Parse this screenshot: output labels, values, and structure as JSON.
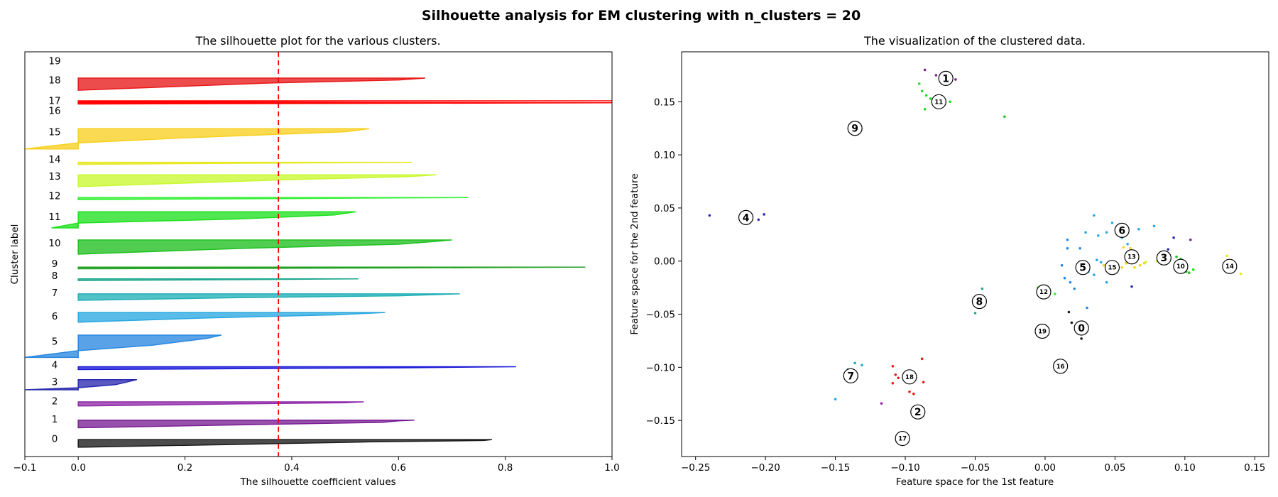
{
  "suptitle": "Silhouette analysis for EM clustering with n_clusters = 20",
  "chart_data": [
    {
      "type": "area",
      "title": "The silhouette plot for the various clusters.",
      "xlabel": "The silhouette coefficient values",
      "ylabel": "Cluster label",
      "xlim": [
        -0.1,
        1.0
      ],
      "xticks": [
        -0.1,
        0.0,
        0.2,
        0.4,
        0.6,
        0.8,
        1.0
      ],
      "xtick_labels": [
        "−0.1",
        "0.0",
        "0.2",
        "0.4",
        "0.6",
        "0.8",
        "1.0"
      ],
      "ylim": [
        0,
        100
      ],
      "average_silhouette": 0.375,
      "average_line_color": "#ff0000",
      "grid": false,
      "clusters": [
        {
          "label": "0",
          "color": "#1a1a1a",
          "y0": 2.3,
          "y1": 4.2,
          "profile": [
            [
              0.775,
              0
            ],
            [
              0.76,
              0.12
            ],
            [
              0.55,
              0.3
            ],
            [
              0.32,
              0.6
            ],
            [
              0.0,
              1.0
            ]
          ]
        },
        {
          "label": "1",
          "color": "#7a1f95",
          "y0": 7.1,
          "y1": 9.0,
          "profile": [
            [
              0.63,
              0
            ],
            [
              0.6,
              0.1
            ],
            [
              0.57,
              0.3
            ],
            [
              0.35,
              0.55
            ],
            [
              0.0,
              1.0
            ]
          ]
        },
        {
          "label": "2",
          "color": "#8f2aa8",
          "y0": 12.5,
          "y1": 13.5,
          "profile": [
            [
              0.535,
              0
            ],
            [
              0.5,
              0.2
            ],
            [
              0.3,
              0.5
            ],
            [
              0.0,
              1.0
            ]
          ]
        },
        {
          "label": "3",
          "color": "#2a2ab0",
          "y0": 16.5,
          "y1": 19.0,
          "profile": [
            [
              0.11,
              0
            ],
            [
              0.09,
              0.25
            ],
            [
              0.07,
              0.5
            ],
            [
              0.0,
              0.8
            ],
            [
              -0.1,
              1.0
            ]
          ]
        },
        {
          "label": "4",
          "color": "#1c1cd8",
          "y0": 21.5,
          "y1": 22.2,
          "profile": [
            [
              0.82,
              0
            ],
            [
              0.6,
              0.4
            ],
            [
              0.0,
              1.0
            ]
          ]
        },
        {
          "label": "5",
          "color": "#2a88e0",
          "y0": 24.5,
          "y1": 30.0,
          "profile": [
            [
              0.268,
              0
            ],
            [
              0.24,
              0.15
            ],
            [
              0.14,
              0.45
            ],
            [
              0.0,
              0.7
            ],
            [
              -0.1,
              1.0
            ]
          ]
        },
        {
          "label": "6",
          "color": "#2aa8e0",
          "y0": 33.2,
          "y1": 35.6,
          "profile": [
            [
              0.575,
              0
            ],
            [
              0.48,
              0.25
            ],
            [
              0.25,
              0.55
            ],
            [
              0.0,
              1.0
            ]
          ]
        },
        {
          "label": "7",
          "color": "#22b0b8",
          "y0": 38.6,
          "y1": 40.2,
          "profile": [
            [
              0.715,
              0
            ],
            [
              0.6,
              0.3
            ],
            [
              0.3,
              0.6
            ],
            [
              0.0,
              1.0
            ]
          ]
        },
        {
          "label": "8",
          "color": "#20a890",
          "y0": 43.5,
          "y1": 43.9,
          "profile": [
            [
              0.525,
              0
            ],
            [
              0.3,
              0.5
            ],
            [
              0.0,
              1.0
            ]
          ]
        },
        {
          "label": "9",
          "color": "#20a020",
          "y0": 46.4,
          "y1": 46.8,
          "profile": [
            [
              0.95,
              0
            ],
            [
              0.6,
              0.5
            ],
            [
              0.0,
              1.0
            ]
          ]
        },
        {
          "label": "10",
          "color": "#20c020",
          "y0": 50.0,
          "y1": 53.5,
          "profile": [
            [
              0.7,
              0
            ],
            [
              0.67,
              0.1
            ],
            [
              0.6,
              0.3
            ],
            [
              0.3,
              0.6
            ],
            [
              0.0,
              1.0
            ]
          ]
        },
        {
          "label": "11",
          "color": "#20e020",
          "y0": 56.5,
          "y1": 60.5,
          "profile": [
            [
              0.52,
              0
            ],
            [
              0.48,
              0.2
            ],
            [
              0.3,
              0.45
            ],
            [
              0.0,
              0.7
            ],
            [
              -0.05,
              1.0
            ]
          ]
        },
        {
          "label": "12",
          "color": "#30f030",
          "y0": 63.5,
          "y1": 64.0,
          "profile": [
            [
              0.73,
              0
            ],
            [
              0.4,
              0.5
            ],
            [
              0.0,
              1.0
            ]
          ]
        },
        {
          "label": "13",
          "color": "#c8f830",
          "y0": 66.7,
          "y1": 69.6,
          "profile": [
            [
              0.67,
              0
            ],
            [
              0.62,
              0.15
            ],
            [
              0.4,
              0.4
            ],
            [
              0.0,
              1.0
            ]
          ]
        },
        {
          "label": "14",
          "color": "#e8e820",
          "y0": 72.2,
          "y1": 72.7,
          "profile": [
            [
              0.625,
              0
            ],
            [
              0.3,
              0.5
            ],
            [
              0.0,
              1.0
            ]
          ]
        },
        {
          "label": "15",
          "color": "#f8d020",
          "y0": 76.0,
          "y1": 81.0,
          "profile": [
            [
              0.545,
              0
            ],
            [
              0.5,
              0.15
            ],
            [
              0.2,
              0.45
            ],
            [
              0.0,
              0.7
            ],
            [
              -0.1,
              1.0
            ]
          ]
        },
        {
          "label": "16",
          "color": "#ff0000",
          "y0": 87.1,
          "y1": 87.4,
          "profile": [
            [
              1.0,
              0
            ],
            [
              0.0,
              1.0
            ]
          ]
        },
        {
          "label": "17",
          "color": "#ff0000",
          "y0": 87.6,
          "y1": 87.9,
          "profile": [
            [
              1.0,
              0
            ],
            [
              0.0,
              1.0
            ]
          ]
        },
        {
          "label": "18",
          "color": "#e81a1a",
          "y0": 90.5,
          "y1": 93.5,
          "profile": [
            [
              0.65,
              0
            ],
            [
              0.6,
              0.15
            ],
            [
              0.36,
              0.4
            ],
            [
              0.0,
              1.0
            ]
          ]
        },
        {
          "label": "19",
          "color": "#e81a1a",
          "y0": 97.5,
          "y1": 97.5,
          "profile": []
        }
      ],
      "cluster_label_y": {
        "0": 4.5,
        "1": 9.3,
        "2": 13.8,
        "3": 18.5,
        "4": 22.7,
        "5": 28.5,
        "6": 34.7,
        "7": 40.5,
        "8": 44.7,
        "9": 47.7,
        "10": 52.8,
        "11": 59.3,
        "12": 64.5,
        "13": 69.3,
        "14": 73.5,
        "15": 80.3,
        "16": 85.5,
        "17": 88.0,
        "18": 93.1,
        "19": 97.8
      }
    },
    {
      "type": "scatter",
      "title": "The visualization of the clustered data.",
      "xlabel": "Feature space for the 1st feature",
      "ylabel": "Feature space for the 2nd feature",
      "xlim": [
        -0.26,
        0.16
      ],
      "ylim": [
        -0.184,
        0.197
      ],
      "xticks": [
        -0.25,
        -0.2,
        -0.15,
        -0.1,
        -0.05,
        0.0,
        0.05,
        0.1,
        0.15
      ],
      "xtick_labels": [
        "−0.25",
        "−0.20",
        "−0.15",
        "−0.10",
        "−0.05",
        "0.00",
        "0.05",
        "0.10",
        "0.15"
      ],
      "yticks": [
        -0.15,
        -0.1,
        -0.05,
        0.0,
        0.05,
        0.1,
        0.15
      ],
      "ytick_labels": [
        "−0.15",
        "−0.10",
        "−0.05",
        "0.00",
        "0.05",
        "0.10",
        "0.15"
      ],
      "grid": false,
      "centers": [
        {
          "label": "0",
          "x": 0.026,
          "y": -0.063
        },
        {
          "label": "1",
          "x": -0.071,
          "y": 0.172
        },
        {
          "label": "2",
          "x": -0.091,
          "y": -0.142
        },
        {
          "label": "3",
          "x": 0.085,
          "y": 0.003
        },
        {
          "label": "4",
          "x": -0.214,
          "y": 0.041
        },
        {
          "label": "5",
          "x": 0.027,
          "y": -0.006
        },
        {
          "label": "6",
          "x": 0.055,
          "y": 0.029
        },
        {
          "label": "7",
          "x": -0.139,
          "y": -0.108
        },
        {
          "label": "8",
          "x": -0.047,
          "y": -0.038
        },
        {
          "label": "9",
          "x": -0.136,
          "y": 0.125
        },
        {
          "label": "10",
          "x": 0.097,
          "y": -0.005
        },
        {
          "label": "11",
          "x": -0.076,
          "y": 0.15
        },
        {
          "label": "12",
          "x": -0.001,
          "y": -0.029
        },
        {
          "label": "13",
          "x": 0.062,
          "y": 0.004
        },
        {
          "label": "14",
          "x": 0.132,
          "y": -0.005
        },
        {
          "label": "15",
          "x": 0.048,
          "y": -0.006
        },
        {
          "label": "16",
          "x": 0.011,
          "y": -0.099
        },
        {
          "label": "17",
          "x": -0.102,
          "y": -0.167
        },
        {
          "label": "18",
          "x": -0.097,
          "y": -0.109
        },
        {
          "label": "19",
          "x": -0.002,
          "y": -0.066
        }
      ],
      "points": [
        {
          "x": -0.24,
          "y": 0.043,
          "c": "#2a2ab0"
        },
        {
          "x": -0.205,
          "y": 0.039,
          "c": "#2a2ab0"
        },
        {
          "x": -0.201,
          "y": 0.044,
          "c": "#2a2ab0"
        },
        {
          "x": -0.086,
          "y": 0.18,
          "c": "#7a1f95"
        },
        {
          "x": -0.078,
          "y": 0.175,
          "c": "#7a1f95"
        },
        {
          "x": -0.064,
          "y": 0.171,
          "c": "#7a1f95"
        },
        {
          "x": -0.067,
          "y": 0.173,
          "c": "#7a1f95"
        },
        {
          "x": -0.09,
          "y": 0.167,
          "c": "#20e020"
        },
        {
          "x": -0.088,
          "y": 0.16,
          "c": "#20e020"
        },
        {
          "x": -0.085,
          "y": 0.156,
          "c": "#20e020"
        },
        {
          "x": -0.082,
          "y": 0.153,
          "c": "#20e020"
        },
        {
          "x": -0.086,
          "y": 0.143,
          "c": "#20e020"
        },
        {
          "x": -0.068,
          "y": 0.15,
          "c": "#20e020"
        },
        {
          "x": -0.077,
          "y": 0.152,
          "c": "#20e020"
        },
        {
          "x": -0.029,
          "y": 0.136,
          "c": "#20c020"
        },
        {
          "x": -0.15,
          "y": -0.13,
          "c": "#2aa8e0"
        },
        {
          "x": -0.136,
          "y": -0.096,
          "c": "#22b0b8"
        },
        {
          "x": -0.131,
          "y": -0.098,
          "c": "#22b0b8"
        },
        {
          "x": -0.141,
          "y": -0.102,
          "c": "#22b0b8"
        },
        {
          "x": -0.109,
          "y": -0.099,
          "c": "#e81a1a"
        },
        {
          "x": -0.107,
          "y": -0.107,
          "c": "#e81a1a"
        },
        {
          "x": -0.105,
          "y": -0.11,
          "c": "#e81a1a"
        },
        {
          "x": -0.109,
          "y": -0.115,
          "c": "#e81a1a"
        },
        {
          "x": -0.097,
          "y": -0.123,
          "c": "#e81a1a"
        },
        {
          "x": -0.094,
          "y": -0.125,
          "c": "#e81a1a"
        },
        {
          "x": -0.088,
          "y": -0.092,
          "c": "#e81a1a"
        },
        {
          "x": -0.087,
          "y": -0.114,
          "c": "#e81a1a"
        },
        {
          "x": -0.117,
          "y": -0.134,
          "c": "#8f2aa8"
        },
        {
          "x": -0.09,
          "y": -0.146,
          "c": "#8f2aa8"
        },
        {
          "x": -0.05,
          "y": -0.049,
          "c": "#20a890"
        },
        {
          "x": -0.045,
          "y": -0.026,
          "c": "#20a890"
        },
        {
          "x": 0.017,
          "y": -0.048,
          "c": "#1a1a1a"
        },
        {
          "x": 0.019,
          "y": -0.058,
          "c": "#1a1a1a"
        },
        {
          "x": 0.026,
          "y": -0.073,
          "c": "#1a1a1a"
        },
        {
          "x": -0.005,
          "y": -0.025,
          "c": "#30f030"
        },
        {
          "x": 0.007,
          "y": -0.031,
          "c": "#30f030"
        },
        {
          "x": 0.016,
          "y": 0.02,
          "c": "#2a88e0"
        },
        {
          "x": 0.016,
          "y": 0.012,
          "c": "#2a88e0"
        },
        {
          "x": 0.012,
          "y": -0.004,
          "c": "#2a88e0"
        },
        {
          "x": 0.014,
          "y": -0.016,
          "c": "#2a88e0"
        },
        {
          "x": 0.018,
          "y": -0.02,
          "c": "#2a88e0"
        },
        {
          "x": 0.021,
          "y": -0.026,
          "c": "#2a88e0"
        },
        {
          "x": 0.03,
          "y": -0.044,
          "c": "#2a88e0"
        },
        {
          "x": 0.025,
          "y": 0.012,
          "c": "#2a88e0"
        },
        {
          "x": 0.029,
          "y": 0.027,
          "c": "#2aa8e0"
        },
        {
          "x": 0.035,
          "y": 0.043,
          "c": "#2aa8e0"
        },
        {
          "x": 0.038,
          "y": 0.024,
          "c": "#2aa8e0"
        },
        {
          "x": 0.044,
          "y": 0.027,
          "c": "#2aa8e0"
        },
        {
          "x": 0.048,
          "y": 0.036,
          "c": "#2aa8e0"
        },
        {
          "x": 0.051,
          "y": 0.029,
          "c": "#2aa8e0"
        },
        {
          "x": 0.055,
          "y": 0.022,
          "c": "#2aa8e0"
        },
        {
          "x": 0.067,
          "y": 0.03,
          "c": "#2aa8e0"
        },
        {
          "x": 0.078,
          "y": 0.033,
          "c": "#2aa8e0"
        },
        {
          "x": 0.059,
          "y": 0.016,
          "c": "#2aa8e0"
        },
        {
          "x": 0.04,
          "y": -0.001,
          "c": "#2aa8e0"
        },
        {
          "x": 0.035,
          "y": -0.013,
          "c": "#2aa8e0"
        },
        {
          "x": 0.044,
          "y": -0.02,
          "c": "#2aa8e0"
        },
        {
          "x": 0.037,
          "y": 0.001,
          "c": "#2aa8e0"
        },
        {
          "x": 0.031,
          "y": -0.01,
          "c": "#2aa8e0"
        },
        {
          "x": 0.042,
          "y": -0.004,
          "c": "#f8d020"
        },
        {
          "x": 0.048,
          "y": -0.005,
          "c": "#f8d020"
        },
        {
          "x": 0.052,
          "y": -0.003,
          "c": "#f8d020"
        },
        {
          "x": 0.055,
          "y": -0.006,
          "c": "#f8d020"
        },
        {
          "x": 0.058,
          "y": -0.002,
          "c": "#f8d020"
        },
        {
          "x": 0.064,
          "y": -0.006,
          "c": "#f8d020"
        },
        {
          "x": 0.068,
          "y": -0.004,
          "c": "#f8d020"
        },
        {
          "x": 0.071,
          "y": -0.002,
          "c": "#f8d020"
        },
        {
          "x": 0.061,
          "y": 0.012,
          "c": "#f8d020"
        },
        {
          "x": 0.056,
          "y": 0.013,
          "c": "#f8d020"
        },
        {
          "x": 0.13,
          "y": 0.005,
          "c": "#e8e820"
        },
        {
          "x": 0.14,
          "y": -0.012,
          "c": "#e8e820"
        },
        {
          "x": 0.072,
          "y": -0.001,
          "c": "#c8f830"
        },
        {
          "x": 0.08,
          "y": 0.0,
          "c": "#c8f830"
        },
        {
          "x": 0.086,
          "y": 0.008,
          "c": "#2a2ab0"
        },
        {
          "x": 0.088,
          "y": 0.011,
          "c": "#2a2ab0"
        },
        {
          "x": 0.092,
          "y": 0.022,
          "c": "#2a2ab0"
        },
        {
          "x": 0.104,
          "y": 0.02,
          "c": "#7a1f95"
        },
        {
          "x": 0.062,
          "y": -0.024,
          "c": "#2a2ab0"
        },
        {
          "x": 0.094,
          "y": 0.004,
          "c": "#20c020"
        },
        {
          "x": 0.097,
          "y": 0.002,
          "c": "#20c020"
        },
        {
          "x": 0.101,
          "y": -0.01,
          "c": "#20c020"
        },
        {
          "x": 0.103,
          "y": -0.011,
          "c": "#20c020"
        },
        {
          "x": 0.106,
          "y": -0.008,
          "c": "#20e020"
        }
      ]
    }
  ]
}
